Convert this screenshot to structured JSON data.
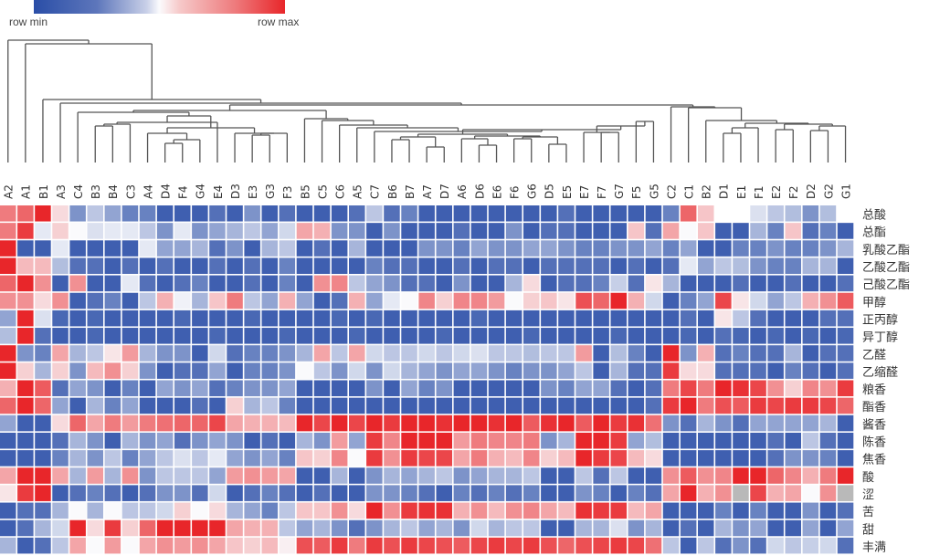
{
  "chart_data": {
    "type": "heatmap",
    "title": "",
    "legend": {
      "min_label": "row min",
      "max_label": "row max",
      "placement": "top-left",
      "colors": {
        "min": "#2a4ea7",
        "mid": "#ffffff",
        "max": "#e8262a",
        "missing": "#b9b9b9"
      }
    },
    "value_range": [
      -1,
      1
    ],
    "columns": [
      "A2",
      "A1",
      "B1",
      "A3",
      "C4",
      "B3",
      "B4",
      "C3",
      "A4",
      "D4",
      "F4",
      "G4",
      "E4",
      "D3",
      "E3",
      "G3",
      "F3",
      "B5",
      "C5",
      "C6",
      "A5",
      "C7",
      "B6",
      "B7",
      "A7",
      "D7",
      "A6",
      "D6",
      "E6",
      "F6",
      "G6",
      "D5",
      "E5",
      "E7",
      "F7",
      "G7",
      "F5",
      "G5",
      "C2",
      "C1",
      "B2",
      "D1",
      "E1",
      "F1",
      "E2",
      "F2",
      "D2",
      "G2",
      "G1"
    ],
    "rows": [
      "总酸",
      "总酯",
      "乳酸乙酯",
      "乙酸乙酯",
      "己酸乙酯",
      "甲醇",
      "正丙醇",
      "异丁醇",
      "乙醛",
      "乙缩醛",
      "粮香",
      "酯香",
      "酱香",
      "陈香",
      "焦香",
      "酸",
      "涩",
      "苦",
      "甜",
      "丰满"
    ],
    "values": [
      [
        0.6,
        0.7,
        1,
        0.15,
        -0.6,
        -0.3,
        -0.5,
        -0.7,
        -0.7,
        -0.9,
        -0.9,
        -0.9,
        -0.8,
        -0.9,
        -0.6,
        -0.9,
        -0.8,
        -0.9,
        -0.9,
        -0.9,
        -0.8,
        -0.3,
        -0.8,
        -0.7,
        -0.9,
        -0.9,
        -0.9,
        -0.9,
        -0.9,
        -0.9,
        -0.9,
        -0.9,
        -0.8,
        -0.9,
        -0.9,
        -0.9,
        -0.9,
        -0.9,
        -0.7,
        0.7,
        0.25,
        0,
        0,
        -0.15,
        -0.3,
        -0.35,
        -0.6,
        -0.35,
        0
      ],
      [
        0.6,
        0.9,
        -0.1,
        0.2,
        0,
        -0.15,
        -0.1,
        -0.1,
        -0.3,
        -0.6,
        -0.1,
        -0.6,
        -0.5,
        -0.4,
        -0.3,
        -0.5,
        -0.2,
        0.4,
        0.35,
        -0.6,
        -0.6,
        -0.9,
        -0.6,
        -0.9,
        -0.9,
        -0.9,
        -0.8,
        -0.9,
        -0.9,
        -0.6,
        -0.9,
        -0.8,
        -0.8,
        -0.9,
        -0.9,
        -0.9,
        0.25,
        -0.8,
        0.4,
        0,
        0.25,
        -0.9,
        -0.9,
        -0.4,
        -0.7,
        0.25,
        -0.8,
        -0.7,
        -0.9
      ],
      [
        1,
        -0.9,
        -0.9,
        -0.1,
        -0.9,
        -0.9,
        -0.9,
        -0.9,
        -0.1,
        -0.5,
        -0.5,
        -0.4,
        -0.8,
        -0.6,
        -0.9,
        -0.4,
        -0.3,
        -0.9,
        -0.8,
        -0.9,
        -0.4,
        -0.9,
        -0.9,
        -0.9,
        -0.6,
        -0.6,
        -0.7,
        -0.5,
        -0.6,
        -0.6,
        -0.5,
        -0.5,
        -0.6,
        -0.7,
        -0.7,
        -0.6,
        -0.6,
        -0.5,
        -0.7,
        -0.5,
        -0.9,
        -0.9,
        -0.7,
        -0.7,
        -0.6,
        -0.7,
        -0.7,
        -0.6,
        -0.4
      ],
      [
        1,
        0.3,
        0.3,
        -0.35,
        -0.8,
        -0.8,
        -0.9,
        -0.8,
        -0.9,
        -0.8,
        -0.9,
        -0.9,
        -0.8,
        -0.9,
        -0.8,
        -0.9,
        -0.7,
        -0.9,
        -0.9,
        -0.9,
        -0.9,
        -0.7,
        -0.8,
        -0.8,
        -0.9,
        -0.9,
        -0.8,
        -0.9,
        -0.8,
        -0.8,
        -0.9,
        -0.8,
        -0.8,
        -0.8,
        -0.8,
        -0.9,
        -0.8,
        -0.9,
        -0.8,
        -0.1,
        -0.5,
        -0.3,
        -0.35,
        -0.6,
        -0.7,
        -0.7,
        -0.4,
        -0.4,
        -0.9
      ],
      [
        0.7,
        1,
        0.5,
        -0.9,
        0.5,
        -0.9,
        -0.9,
        -0.1,
        -0.8,
        -0.9,
        -0.8,
        -0.7,
        -0.9,
        -0.9,
        -0.8,
        -0.9,
        -0.7,
        -0.9,
        0.5,
        0.55,
        -0.3,
        -0.5,
        -0.6,
        -0.8,
        -0.8,
        -0.9,
        -0.6,
        -0.9,
        -0.9,
        -0.4,
        0.15,
        -0.9,
        -0.8,
        -0.8,
        -0.7,
        -0.25,
        -0.8,
        0.1,
        -0.4,
        -0.9,
        -0.9,
        -0.9,
        -0.8,
        -0.9,
        -0.9,
        -0.8,
        -0.9,
        -0.9,
        -0.8
      ],
      [
        0.5,
        0.5,
        0.15,
        0.5,
        -0.9,
        -0.8,
        -0.7,
        -0.9,
        -0.3,
        0.35,
        -0.05,
        -0.4,
        0.25,
        0.6,
        -0.3,
        -0.5,
        0.35,
        -0.5,
        -0.9,
        -0.8,
        0.35,
        -0.5,
        -0.1,
        0,
        0.55,
        0.2,
        0.55,
        0.55,
        0.45,
        0,
        0.2,
        0.25,
        0.1,
        0.8,
        0.7,
        1,
        0.35,
        -0.2,
        -0.9,
        -0.7,
        -0.5,
        0.85,
        0.1,
        -0.2,
        -0.5,
        -0.3,
        0.35,
        0.5,
        0.75
      ],
      [
        -0.5,
        1,
        -0.15,
        -0.85,
        -0.9,
        -0.85,
        -0.9,
        -0.9,
        -0.9,
        -0.9,
        -0.85,
        -0.9,
        -0.9,
        -0.9,
        -0.85,
        -0.9,
        -0.9,
        -0.9,
        -0.9,
        -0.85,
        -0.9,
        -0.85,
        -0.9,
        -0.9,
        -0.9,
        -0.9,
        -0.9,
        -0.85,
        -0.9,
        -0.9,
        -0.9,
        -0.9,
        -0.9,
        -0.9,
        -0.9,
        -0.9,
        -0.9,
        -0.9,
        -0.9,
        -0.8,
        -0.9,
        0.1,
        -0.3,
        -0.8,
        -0.9,
        -0.9,
        -0.9,
        -0.8,
        -0.8
      ],
      [
        -0.35,
        1,
        -0.8,
        -0.9,
        -0.9,
        -0.85,
        -0.9,
        -0.9,
        -0.9,
        -0.9,
        -0.9,
        -0.9,
        -0.85,
        -0.9,
        -0.9,
        -0.9,
        -0.85,
        -0.9,
        -0.9,
        -0.9,
        -0.85,
        -0.9,
        -0.9,
        -0.9,
        -0.9,
        -0.85,
        -0.9,
        -0.9,
        -0.9,
        -0.9,
        -0.85,
        -0.9,
        -0.9,
        -0.9,
        -0.9,
        -0.85,
        -0.9,
        -0.9,
        -0.9,
        -0.85,
        -0.9,
        -0.8,
        -0.85,
        -0.9,
        -0.85,
        -0.9,
        -0.85,
        -0.9,
        -0.85
      ],
      [
        1,
        -0.6,
        -0.7,
        0.4,
        -0.4,
        -0.3,
        0.1,
        0.45,
        -0.4,
        -0.6,
        -0.6,
        -0.9,
        -0.2,
        -0.8,
        -0.7,
        -0.7,
        -0.6,
        -0.4,
        0.4,
        -0.3,
        0.4,
        -0.2,
        -0.3,
        -0.3,
        -0.2,
        -0.3,
        -0.2,
        -0.15,
        -0.3,
        -0.3,
        -0.35,
        -0.3,
        -0.3,
        0.45,
        -0.9,
        -0.35,
        -0.7,
        -0.9,
        1,
        -0.6,
        0.35,
        -0.8,
        -0.7,
        -0.8,
        -0.8,
        -0.4,
        -0.9,
        -0.8,
        -0.8
      ],
      [
        1,
        0.2,
        -0.4,
        0.2,
        -0.6,
        0.3,
        0.5,
        0.2,
        -0.6,
        -0.9,
        -0.8,
        -0.8,
        -0.5,
        -0.9,
        -0.7,
        -0.7,
        -0.6,
        0,
        -0.3,
        -0.6,
        -0.2,
        -0.6,
        -0.2,
        -0.4,
        -0.5,
        -0.6,
        -0.5,
        -0.5,
        -0.6,
        -0.7,
        -0.6,
        -0.6,
        -0.5,
        -0.3,
        -0.9,
        -0.4,
        -0.8,
        -0.8,
        0.9,
        0.15,
        0.15,
        -0.8,
        -0.8,
        -0.8,
        -0.9,
        -0.7,
        -0.8,
        -0.9,
        -0.8
      ],
      [
        0.35,
        1,
        0.75,
        -0.8,
        -0.5,
        -0.6,
        -0.9,
        -0.7,
        -0.9,
        -0.5,
        -0.6,
        -0.5,
        -0.8,
        -0.7,
        -0.6,
        -0.6,
        -0.5,
        -0.9,
        -0.9,
        -0.9,
        -0.9,
        -0.6,
        -0.9,
        -0.5,
        -0.7,
        -0.6,
        -0.9,
        -0.9,
        -0.9,
        -0.9,
        -0.9,
        -0.6,
        -0.7,
        -0.5,
        -0.5,
        -0.8,
        -0.9,
        -0.8,
        0.6,
        0.85,
        0.6,
        1,
        0.95,
        0.85,
        0.5,
        0.2,
        0.55,
        0.5,
        0.9
      ],
      [
        0.7,
        1,
        0.7,
        -0.5,
        -0.9,
        -0.4,
        -0.7,
        -0.5,
        -0.9,
        -0.9,
        -0.9,
        -0.8,
        -0.9,
        0.2,
        -0.4,
        -0.3,
        -0.7,
        -0.9,
        -0.9,
        -0.9,
        -0.9,
        -0.9,
        -0.9,
        -0.9,
        -0.9,
        -0.9,
        -0.9,
        -0.9,
        -0.9,
        -0.9,
        -0.9,
        -0.9,
        -0.9,
        -0.9,
        -0.9,
        -0.9,
        -0.9,
        -0.8,
        0.9,
        1,
        0.6,
        0.8,
        0.75,
        0.9,
        0.85,
        0.9,
        0.9,
        0.85,
        0.7
      ],
      [
        -0.5,
        -0.9,
        -0.9,
        0.15,
        0.7,
        0.4,
        0.6,
        0.45,
        0.6,
        0.65,
        0.7,
        0.7,
        0.85,
        0.4,
        0.35,
        0.35,
        0.3,
        1,
        0.85,
        1,
        0.85,
        1,
        0.9,
        1,
        1,
        0.95,
        1,
        1,
        0.95,
        1,
        0.75,
        0.95,
        1,
        0.75,
        1,
        0.9,
        0.95,
        0.65,
        -0.6,
        -0.8,
        -0.4,
        -0.6,
        -0.8,
        -0.5,
        -0.5,
        -0.5,
        -0.5,
        -0.4,
        -0.9
      ],
      [
        -0.9,
        -0.9,
        -0.9,
        -0.8,
        -0.4,
        -0.6,
        -0.9,
        -0.4,
        -0.6,
        -0.5,
        -0.8,
        -0.6,
        -0.5,
        -0.6,
        -0.9,
        -0.8,
        -0.9,
        -0.4,
        -0.6,
        0.45,
        -0.5,
        0.9,
        0.55,
        1,
        1,
        1,
        0.45,
        0.6,
        0.55,
        0.55,
        0.6,
        -0.6,
        -0.4,
        1,
        1,
        0.9,
        -0.5,
        -0.35,
        -0.9,
        -0.9,
        -0.9,
        -0.9,
        -0.9,
        -0.9,
        -0.8,
        -0.9,
        -0.3,
        -0.8,
        -0.9
      ],
      [
        -0.9,
        -0.9,
        -0.9,
        -0.7,
        -0.4,
        -0.6,
        -0.3,
        -0.7,
        -0.5,
        -0.3,
        -0.15,
        -0.3,
        -0.1,
        -0.5,
        -0.6,
        -0.5,
        -0.7,
        0.25,
        0.2,
        0.55,
        0,
        0.9,
        0.5,
        0.9,
        0.85,
        0.85,
        0.4,
        0.6,
        0.35,
        0.3,
        0.55,
        0.2,
        0.3,
        1,
        0.9,
        0.85,
        0.3,
        0.15,
        -0.9,
        -0.9,
        -0.9,
        -0.9,
        -0.9,
        -0.9,
        -0.8,
        -0.6,
        -0.6,
        -0.7,
        -0.9
      ],
      [
        0.4,
        1,
        1,
        0.4,
        -0.4,
        0.45,
        -0.4,
        0.5,
        -0.6,
        -0.3,
        -0.3,
        -0.3,
        -0.5,
        0.45,
        0.5,
        0.45,
        0.4,
        -0.9,
        -0.9,
        -0.4,
        -0.9,
        -0.6,
        -0.4,
        -0.5,
        -0.4,
        -0.3,
        -0.6,
        -0.5,
        -0.4,
        -0.4,
        -0.3,
        -0.9,
        -0.9,
        -0.3,
        -0.8,
        -0.3,
        -0.9,
        -0.9,
        0.5,
        0.75,
        0.5,
        0.55,
        1,
        1,
        0.7,
        0.55,
        0.35,
        0.6,
        1
      ],
      [
        0.1,
        0.9,
        1,
        -0.9,
        -0.8,
        -0.7,
        -0.8,
        -0.9,
        -0.8,
        -0.6,
        -0.6,
        -0.8,
        -0.2,
        -0.9,
        -0.8,
        -0.7,
        -0.8,
        -0.9,
        -0.8,
        -0.9,
        -0.9,
        -0.6,
        -0.6,
        -0.7,
        -0.8,
        -0.9,
        -0.7,
        -0.8,
        -0.7,
        -0.8,
        -0.7,
        -0.9,
        -0.9,
        -0.6,
        -0.7,
        -0.9,
        -0.7,
        -0.8,
        0.4,
        1,
        0.35,
        0.5,
        null,
        0.85,
        0.35,
        0.4,
        0,
        0.5,
        null
      ],
      [
        -0.9,
        -0.8,
        -0.8,
        -0.4,
        0,
        -0.4,
        0,
        -0.3,
        -0.3,
        -0.2,
        0.2,
        0,
        0.15,
        -0.4,
        -0.5,
        -0.7,
        -0.3,
        0.25,
        0.25,
        0.5,
        0.15,
        1,
        0.5,
        0.9,
        0.95,
        0.95,
        0.35,
        0.5,
        0.3,
        0.5,
        0.55,
        0.4,
        0.3,
        0.95,
        0.9,
        0.9,
        0.3,
        0.4,
        -0.9,
        -0.9,
        -0.9,
        -0.7,
        -0.9,
        -0.7,
        -0.9,
        -0.9,
        -0.6,
        -0.9,
        -0.8
      ],
      [
        -0.9,
        -0.8,
        -0.4,
        -0.2,
        1,
        0.15,
        0.9,
        0.2,
        0.7,
        1,
        1,
        1,
        1,
        0.4,
        0.35,
        0.35,
        -0.3,
        -0.5,
        -0.4,
        -0.6,
        -0.8,
        -0.6,
        -0.4,
        -0.3,
        -0.5,
        -0.4,
        -0.6,
        -0.2,
        -0.4,
        -0.3,
        -0.3,
        -0.9,
        -0.9,
        -0.4,
        -0.4,
        -0.15,
        -0.6,
        -0.4,
        -0.9,
        -0.8,
        -0.9,
        -0.4,
        -0.6,
        -0.5,
        -0.9,
        -0.9,
        -0.5,
        -0.9,
        -0.5
      ],
      [
        -0.4,
        -0.9,
        -0.8,
        -0.3,
        0.4,
        0,
        0.45,
        0,
        0.4,
        0.5,
        0.45,
        0.5,
        0.4,
        0.25,
        0.2,
        0.3,
        0.05,
        0.8,
        0.75,
        0.9,
        0.6,
        0.9,
        0.8,
        0.9,
        0.85,
        0.8,
        0.75,
        0.85,
        0.9,
        0.85,
        0.9,
        0.8,
        0.7,
        0.8,
        0.85,
        0.9,
        0.85,
        0.65,
        -0.3,
        -0.9,
        -0.3,
        -0.8,
        -0.6,
        -0.8,
        -0.2,
        -0.3,
        -0.25,
        -0.2,
        -0.8
      ]
    ]
  }
}
